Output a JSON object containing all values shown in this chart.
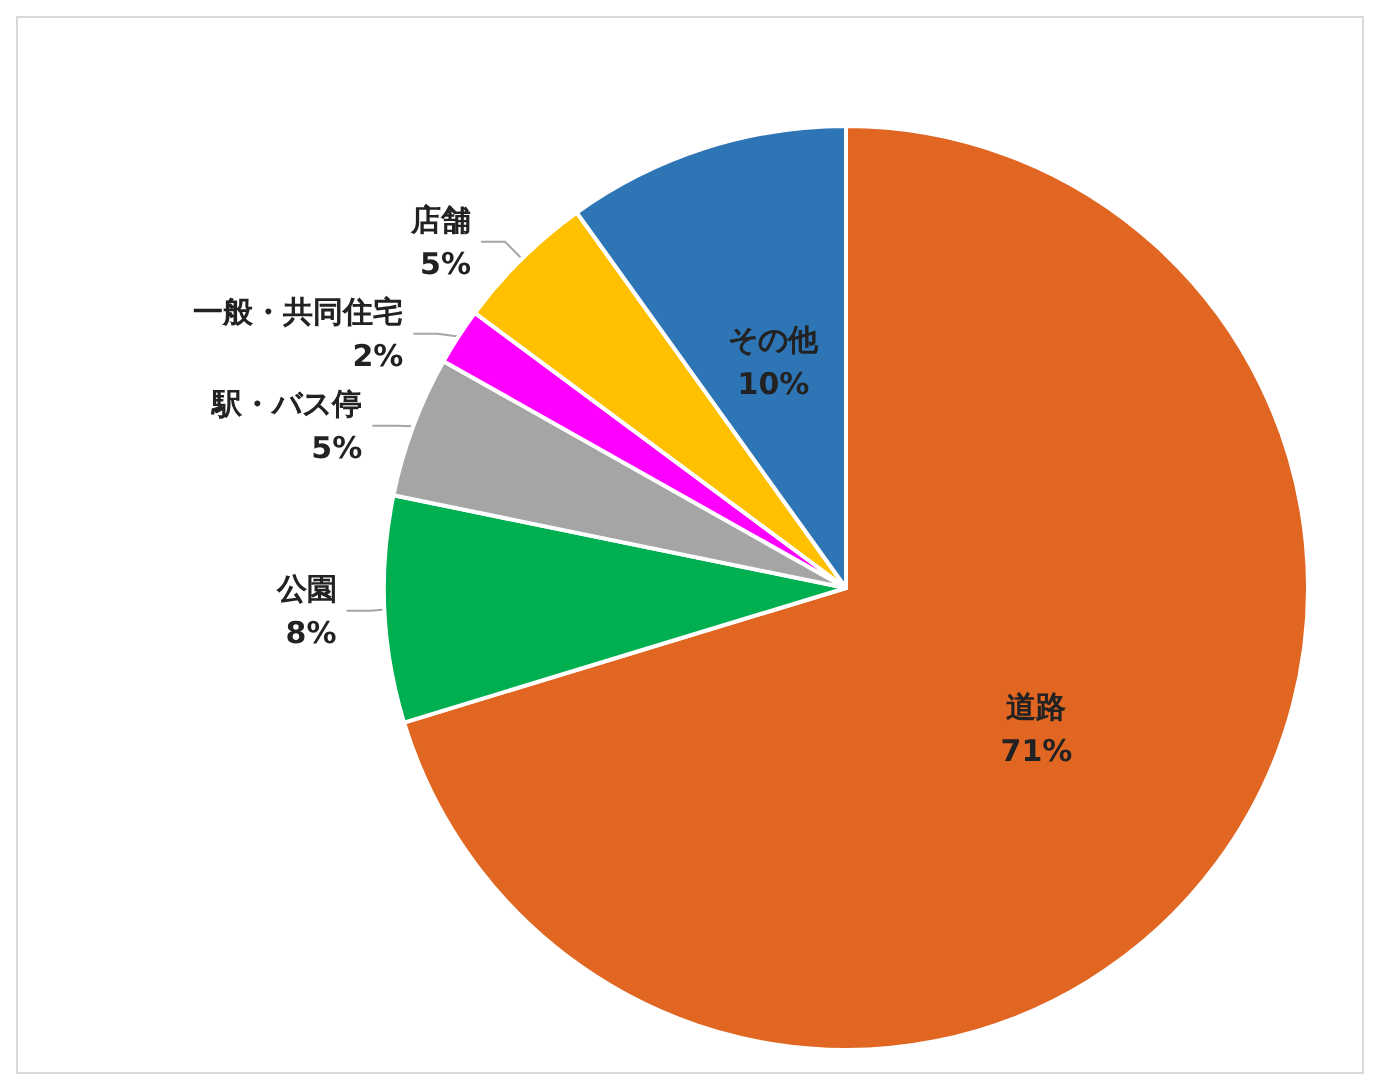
{
  "chart_data": {
    "type": "pie",
    "categories": [
      "道路",
      "公園",
      "駅・バス停",
      "一般・共同住宅",
      "店舗",
      "その他"
    ],
    "values": [
      71,
      8,
      5,
      2,
      5,
      10
    ],
    "value_labels": [
      "71%",
      "8%",
      "5%",
      "2%",
      "5%",
      "10%"
    ],
    "colors": [
      "#e06622",
      "#00b050",
      "#a5a5a5",
      "#ff00ff",
      "#ffc000",
      "#2e75b6"
    ],
    "legend": false
  }
}
